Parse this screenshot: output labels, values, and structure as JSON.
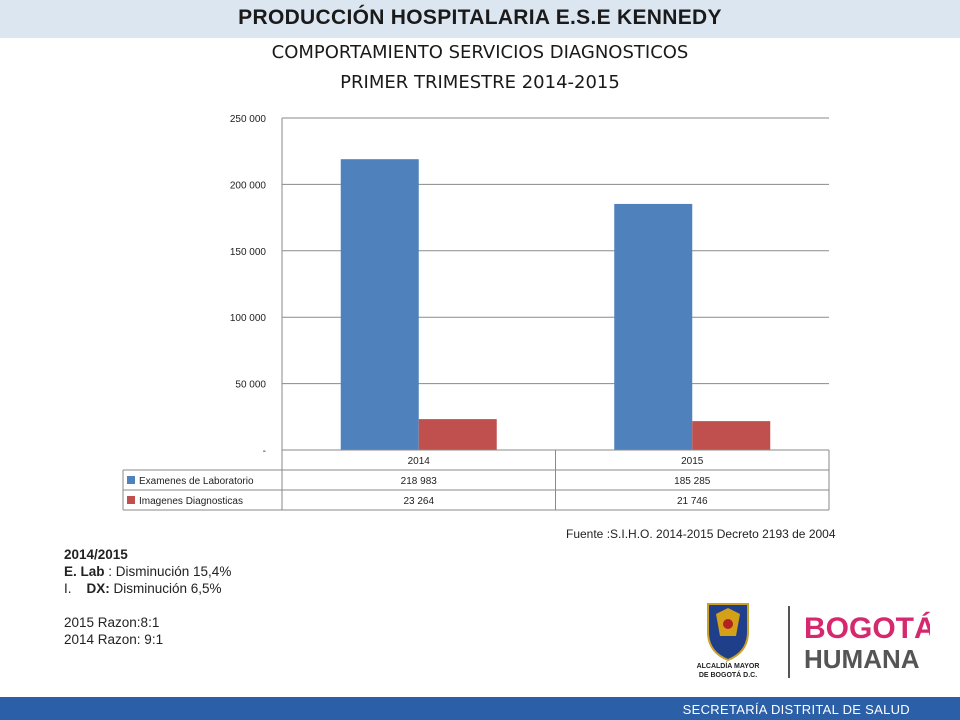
{
  "header": {
    "title": "PRODUCCIÓN HOSPITALARIA E.S.E KENNEDY",
    "subtitle1": "COMPORTAMIENTO SERVICIOS DIAGNOSTICOS",
    "subtitle2": "PRIMER TRIMESTRE 2014-2015"
  },
  "chart_data": {
    "type": "bar",
    "categories": [
      "2014",
      "2015"
    ],
    "series": [
      {
        "name": "Examenes de Laboratorio",
        "values": [
          218983,
          185285
        ],
        "labels": [
          "218 983",
          "185 285"
        ],
        "color": "#4f81bd"
      },
      {
        "name": "Imagenes Diagnosticas",
        "values": [
          23264,
          21746
        ],
        "labels": [
          "23 264",
          "21 746"
        ],
        "color": "#c0504d"
      }
    ],
    "ylim": [
      0,
      250000
    ],
    "yticks": [
      0,
      50000,
      100000,
      150000,
      200000,
      250000
    ],
    "ytick_labels": [
      "-",
      "50 000",
      "100 000",
      "150 000",
      "200 000",
      "250 000"
    ],
    "grid": true,
    "legend": "data-table"
  },
  "source": "Fuente :S.I.H.O. 2014-2015  Decreto 2193 de 2004",
  "notes": {
    "period": "2014/2015",
    "lab_label": "E. Lab",
    "lab_text": " : Disminución 15,4%",
    "dx_prefix": "I.    ",
    "dx_label": "DX:",
    "dx_text": " Disminución 6,5%",
    "ratio_2015": "2015 Razon:8:1",
    "ratio_2014": "2014 Razon: 9:1"
  },
  "logos": {
    "alcaldia_line1": "ALCALDÍA MAYOR",
    "alcaldia_line2": "DE BOGOTÁ D.C.",
    "brand_line1": "BOGOTÁ",
    "brand_line2": "HUMANA"
  },
  "footer": {
    "text": "SECRETARÍA DISTRITAL DE SALUD",
    "color": "#2b5fa8"
  }
}
